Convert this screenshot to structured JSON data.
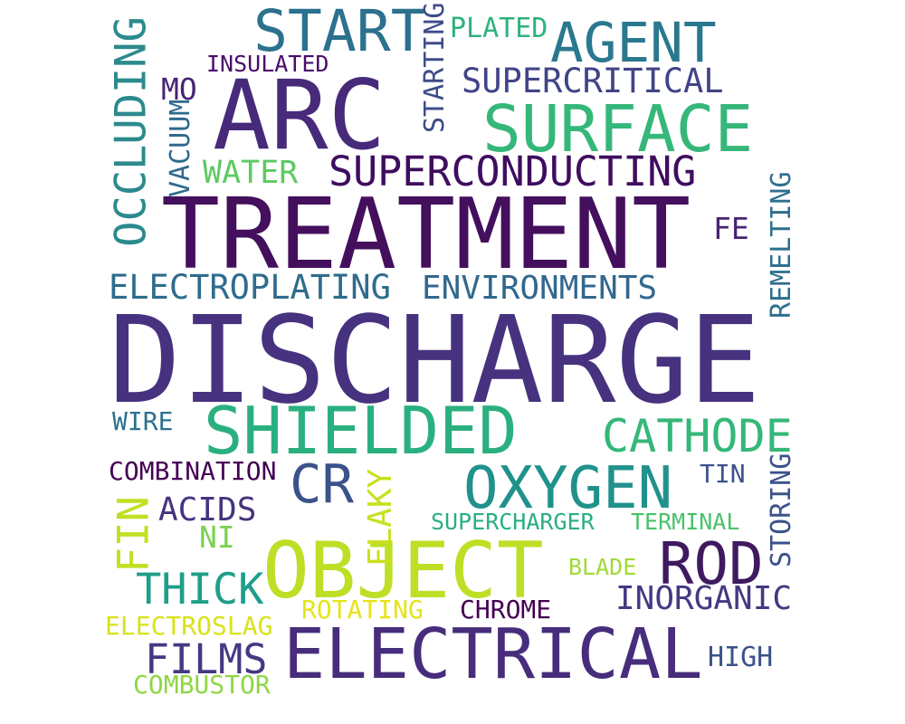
{
  "words": [
    {
      "text": "DISCHARGE",
      "color": "#46327e"
    },
    {
      "text": "TREATMENT",
      "color": "#440f5c"
    },
    {
      "text": "ARC",
      "color": "#472a7a"
    },
    {
      "text": "OBJECT",
      "color": "#bddf26"
    },
    {
      "text": "ELECTRICAL",
      "color": "#472d7b"
    },
    {
      "text": "SURFACE",
      "color": "#35b779"
    },
    {
      "text": "SHIELDED",
      "color": "#2ab07f"
    },
    {
      "text": "START",
      "color": "#2c718e"
    },
    {
      "text": "AGENT",
      "color": "#2a788e"
    },
    {
      "text": "OXYGEN",
      "color": "#21918c"
    },
    {
      "text": "OCCLUDING",
      "color": "#2c8a8d"
    },
    {
      "text": "ROD",
      "color": "#3f1a5f"
    },
    {
      "text": "CR",
      "color": "#3b528b"
    },
    {
      "text": "CATHODE",
      "color": "#35b779"
    },
    {
      "text": "SUPERCONDUCTING",
      "color": "#3f0d5f"
    },
    {
      "text": "THICK",
      "color": "#1f9e89"
    },
    {
      "text": "FILMS",
      "color": "#443983"
    },
    {
      "text": "FIN",
      "color": "#c2df23"
    },
    {
      "text": "FLAKY",
      "color": "#c8e020"
    },
    {
      "text": "ELECTROPLATING",
      "color": "#2f6c8e"
    },
    {
      "text": "ENVIRONMENTS",
      "color": "#31688e"
    },
    {
      "text": "SUPERCRITICAL",
      "color": "#414487"
    },
    {
      "text": "INORGANIC",
      "color": "#443983"
    },
    {
      "text": "ACIDS",
      "color": "#46337e"
    },
    {
      "text": "WATER",
      "color": "#5ec962"
    },
    {
      "text": "MO",
      "color": "#482575"
    },
    {
      "text": "FE",
      "color": "#482475"
    },
    {
      "text": "STARTING",
      "color": "#3e4c8a"
    },
    {
      "text": "REMELTING",
      "color": "#2e6f8e"
    },
    {
      "text": "STORING",
      "color": "#3b528b"
    },
    {
      "text": "VACUUM",
      "color": "#306a8e"
    },
    {
      "text": "COMBINATION",
      "color": "#440154"
    },
    {
      "text": "ELECTROSLAG",
      "color": "#d8e219"
    },
    {
      "text": "COMBUSTOR",
      "color": "#8fd744"
    },
    {
      "text": "ROTATING",
      "color": "#e5e419"
    },
    {
      "text": "CHROME",
      "color": "#440154"
    },
    {
      "text": "HIGH",
      "color": "#3b528b"
    },
    {
      "text": "NI",
      "color": "#7ad151"
    },
    {
      "text": "SUPERCHARGER",
      "color": "#29af7f"
    },
    {
      "text": "TERMINAL",
      "color": "#4ac16d"
    },
    {
      "text": "BLADE",
      "color": "#a0da39"
    },
    {
      "text": "TIN",
      "color": "#3b528b"
    },
    {
      "text": "WIRE",
      "color": "#2c718e"
    },
    {
      "text": "PLATED",
      "color": "#2db27d"
    },
    {
      "text": "INSULATED",
      "color": "#4b0c6b"
    }
  ]
}
